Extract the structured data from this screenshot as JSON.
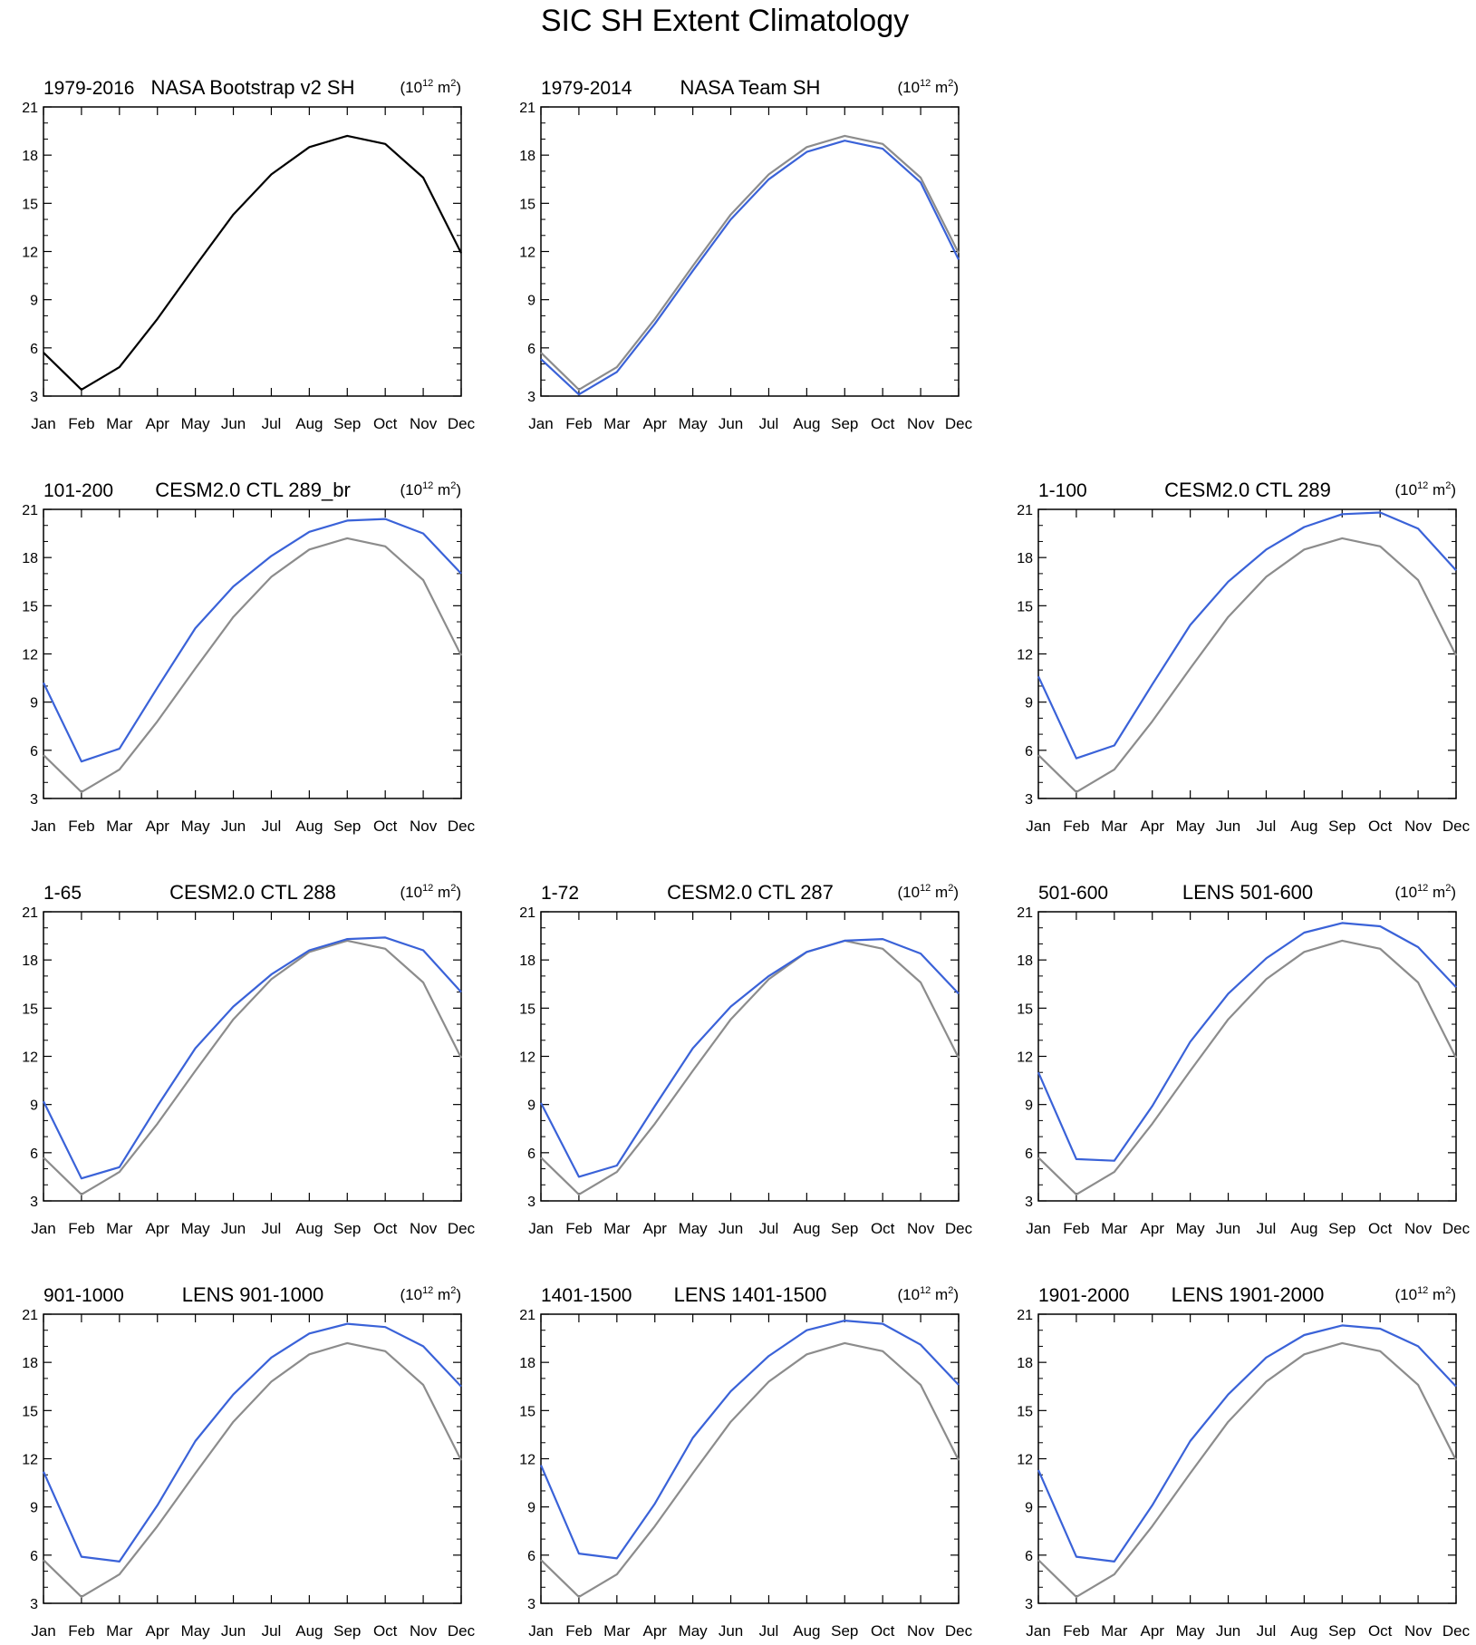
{
  "figure": {
    "title": "SIC SH Extent Climatology"
  },
  "style": {
    "obs_color": "#000000",
    "reference_color": "#8c8c8c",
    "model_color": "#3a62d8"
  },
  "chart_data": [
    {
      "type": "line",
      "title": "NASA Bootstrap v2 SH",
      "period": "1979-2016",
      "units_base": "10",
      "units_exp": "12",
      "units_suffix": "m",
      "units_suffix_exp": "2",
      "categories": [
        "Jan",
        "Feb",
        "Mar",
        "Apr",
        "May",
        "Jun",
        "Jul",
        "Aug",
        "Sep",
        "Oct",
        "Nov",
        "Dec"
      ],
      "ylim": [
        3,
        21
      ],
      "yticks": [
        3,
        6,
        9,
        12,
        15,
        18,
        21
      ],
      "series": [
        {
          "values": [
            5.7,
            3.4,
            4.8,
            7.8,
            11.1,
            14.3,
            16.8,
            18.5,
            19.2,
            18.7,
            16.6,
            11.9
          ],
          "color": "#000000"
        }
      ]
    },
    {
      "type": "line",
      "title": "NASA Team SH",
      "period": "1979-2014",
      "units_base": "10",
      "units_exp": "12",
      "units_suffix": "m",
      "units_suffix_exp": "2",
      "categories": [
        "Jan",
        "Feb",
        "Mar",
        "Apr",
        "May",
        "Jun",
        "Jul",
        "Aug",
        "Sep",
        "Oct",
        "Nov",
        "Dec"
      ],
      "ylim": [
        3,
        21
      ],
      "yticks": [
        3,
        6,
        9,
        12,
        15,
        18,
        21
      ],
      "series": [
        {
          "values": [
            5.7,
            3.4,
            4.8,
            7.8,
            11.1,
            14.3,
            16.8,
            18.5,
            19.2,
            18.7,
            16.6,
            11.9
          ],
          "color": "#8c8c8c"
        },
        {
          "values": [
            5.3,
            3.1,
            4.5,
            7.5,
            10.8,
            14.0,
            16.5,
            18.2,
            18.9,
            18.4,
            16.3,
            11.5
          ],
          "color": "#3a62d8"
        }
      ]
    },
    {
      "type": "line",
      "title": "CESM2.0 CTL 289_br",
      "period": "101-200",
      "units_base": "10",
      "units_exp": "12",
      "units_suffix": "m",
      "units_suffix_exp": "2",
      "categories": [
        "Jan",
        "Feb",
        "Mar",
        "Apr",
        "May",
        "Jun",
        "Jul",
        "Aug",
        "Sep",
        "Oct",
        "Nov",
        "Dec"
      ],
      "ylim": [
        3,
        21
      ],
      "yticks": [
        3,
        6,
        9,
        12,
        15,
        18,
        21
      ],
      "series": [
        {
          "values": [
            5.7,
            3.4,
            4.8,
            7.8,
            11.1,
            14.3,
            16.8,
            18.5,
            19.2,
            18.7,
            16.6,
            11.9
          ],
          "color": "#8c8c8c"
        },
        {
          "values": [
            10.2,
            5.3,
            6.1,
            9.9,
            13.6,
            16.2,
            18.1,
            19.6,
            20.3,
            20.4,
            19.5,
            17.0
          ],
          "color": "#3a62d8"
        }
      ]
    },
    {
      "type": "line",
      "title": "CESM2.0 CTL 289",
      "period": "1-100",
      "units_base": "10",
      "units_exp": "12",
      "units_suffix": "m",
      "units_suffix_exp": "2",
      "categories": [
        "Jan",
        "Feb",
        "Mar",
        "Apr",
        "May",
        "Jun",
        "Jul",
        "Aug",
        "Sep",
        "Oct",
        "Nov",
        "Dec"
      ],
      "ylim": [
        3,
        21
      ],
      "yticks": [
        3,
        6,
        9,
        12,
        15,
        18,
        21
      ],
      "series": [
        {
          "values": [
            5.7,
            3.4,
            4.8,
            7.8,
            11.1,
            14.3,
            16.8,
            18.5,
            19.2,
            18.7,
            16.6,
            11.9
          ],
          "color": "#8c8c8c"
        },
        {
          "values": [
            10.6,
            5.5,
            6.3,
            10.1,
            13.8,
            16.5,
            18.5,
            19.9,
            20.7,
            20.8,
            19.8,
            17.2
          ],
          "color": "#3a62d8"
        }
      ]
    },
    {
      "type": "line",
      "title": "CESM2.0 CTL 288",
      "period": "1-65",
      "units_base": "10",
      "units_exp": "12",
      "units_suffix": "m",
      "units_suffix_exp": "2",
      "categories": [
        "Jan",
        "Feb",
        "Mar",
        "Apr",
        "May",
        "Jun",
        "Jul",
        "Aug",
        "Sep",
        "Oct",
        "Nov",
        "Dec"
      ],
      "ylim": [
        3,
        21
      ],
      "yticks": [
        3,
        6,
        9,
        12,
        15,
        18,
        21
      ],
      "series": [
        {
          "values": [
            5.7,
            3.4,
            4.8,
            7.8,
            11.1,
            14.3,
            16.8,
            18.5,
            19.2,
            18.7,
            16.6,
            11.9
          ],
          "color": "#8c8c8c"
        },
        {
          "values": [
            9.2,
            4.4,
            5.1,
            8.9,
            12.5,
            15.1,
            17.1,
            18.6,
            19.3,
            19.4,
            18.6,
            16.0
          ],
          "color": "#3a62d8"
        }
      ]
    },
    {
      "type": "line",
      "title": "CESM2.0 CTL 287",
      "period": "1-72",
      "units_base": "10",
      "units_exp": "12",
      "units_suffix": "m",
      "units_suffix_exp": "2",
      "categories": [
        "Jan",
        "Feb",
        "Mar",
        "Apr",
        "May",
        "Jun",
        "Jul",
        "Aug",
        "Sep",
        "Oct",
        "Nov",
        "Dec"
      ],
      "ylim": [
        3,
        21
      ],
      "yticks": [
        3,
        6,
        9,
        12,
        15,
        18,
        21
      ],
      "series": [
        {
          "values": [
            5.7,
            3.4,
            4.8,
            7.8,
            11.1,
            14.3,
            16.8,
            18.5,
            19.2,
            18.7,
            16.6,
            11.9
          ],
          "color": "#8c8c8c"
        },
        {
          "values": [
            9.1,
            4.5,
            5.2,
            8.9,
            12.5,
            15.1,
            17.0,
            18.5,
            19.2,
            19.3,
            18.4,
            15.9
          ],
          "color": "#3a62d8"
        }
      ]
    },
    {
      "type": "line",
      "title": "LENS 501-600",
      "period": "501-600",
      "units_base": "10",
      "units_exp": "12",
      "units_suffix": "m",
      "units_suffix_exp": "2",
      "categories": [
        "Jan",
        "Feb",
        "Mar",
        "Apr",
        "May",
        "Jun",
        "Jul",
        "Aug",
        "Sep",
        "Oct",
        "Nov",
        "Dec"
      ],
      "ylim": [
        3,
        21
      ],
      "yticks": [
        3,
        6,
        9,
        12,
        15,
        18,
        21
      ],
      "series": [
        {
          "values": [
            5.7,
            3.4,
            4.8,
            7.8,
            11.1,
            14.3,
            16.8,
            18.5,
            19.2,
            18.7,
            16.6,
            11.9
          ],
          "color": "#8c8c8c"
        },
        {
          "values": [
            11.0,
            5.6,
            5.5,
            8.9,
            12.9,
            15.9,
            18.1,
            19.7,
            20.3,
            20.1,
            18.8,
            16.3
          ],
          "color": "#3a62d8"
        }
      ]
    },
    {
      "type": "line",
      "title": "LENS 901-1000",
      "period": "901-1000",
      "units_base": "10",
      "units_exp": "12",
      "units_suffix": "m",
      "units_suffix_exp": "2",
      "categories": [
        "Jan",
        "Feb",
        "Mar",
        "Apr",
        "May",
        "Jun",
        "Jul",
        "Aug",
        "Sep",
        "Oct",
        "Nov",
        "Dec"
      ],
      "ylim": [
        3,
        21
      ],
      "yticks": [
        3,
        6,
        9,
        12,
        15,
        18,
        21
      ],
      "series": [
        {
          "values": [
            5.7,
            3.4,
            4.8,
            7.8,
            11.1,
            14.3,
            16.8,
            18.5,
            19.2,
            18.7,
            16.6,
            11.9
          ],
          "color": "#8c8c8c"
        },
        {
          "values": [
            11.2,
            5.9,
            5.6,
            9.1,
            13.1,
            16.0,
            18.3,
            19.8,
            20.4,
            20.2,
            19.0,
            16.5
          ],
          "color": "#3a62d8"
        }
      ]
    },
    {
      "type": "line",
      "title": "LENS 1401-1500",
      "period": "1401-1500",
      "units_base": "10",
      "units_exp": "12",
      "units_suffix": "m",
      "units_suffix_exp": "2",
      "categories": [
        "Jan",
        "Feb",
        "Mar",
        "Apr",
        "May",
        "Jun",
        "Jul",
        "Aug",
        "Sep",
        "Oct",
        "Nov",
        "Dec"
      ],
      "ylim": [
        3,
        21
      ],
      "yticks": [
        3,
        6,
        9,
        12,
        15,
        18,
        21
      ],
      "series": [
        {
          "values": [
            5.7,
            3.4,
            4.8,
            7.8,
            11.1,
            14.3,
            16.8,
            18.5,
            19.2,
            18.7,
            16.6,
            11.9
          ],
          "color": "#8c8c8c"
        },
        {
          "values": [
            11.6,
            6.1,
            5.8,
            9.2,
            13.3,
            16.2,
            18.4,
            20.0,
            20.6,
            20.4,
            19.1,
            16.6
          ],
          "color": "#3a62d8"
        }
      ]
    },
    {
      "type": "line",
      "title": "LENS 1901-2000",
      "period": "1901-2000",
      "units_base": "10",
      "units_exp": "12",
      "units_suffix": "m",
      "units_suffix_exp": "2",
      "categories": [
        "Jan",
        "Feb",
        "Mar",
        "Apr",
        "May",
        "Jun",
        "Jul",
        "Aug",
        "Sep",
        "Oct",
        "Nov",
        "Dec"
      ],
      "ylim": [
        3,
        21
      ],
      "yticks": [
        3,
        6,
        9,
        12,
        15,
        18,
        21
      ],
      "series": [
        {
          "values": [
            5.7,
            3.4,
            4.8,
            7.8,
            11.1,
            14.3,
            16.8,
            18.5,
            19.2,
            18.7,
            16.6,
            11.9
          ],
          "color": "#8c8c8c"
        },
        {
          "values": [
            11.3,
            5.9,
            5.6,
            9.1,
            13.1,
            16.0,
            18.3,
            19.7,
            20.3,
            20.1,
            19.0,
            16.5
          ],
          "color": "#3a62d8"
        }
      ]
    }
  ]
}
